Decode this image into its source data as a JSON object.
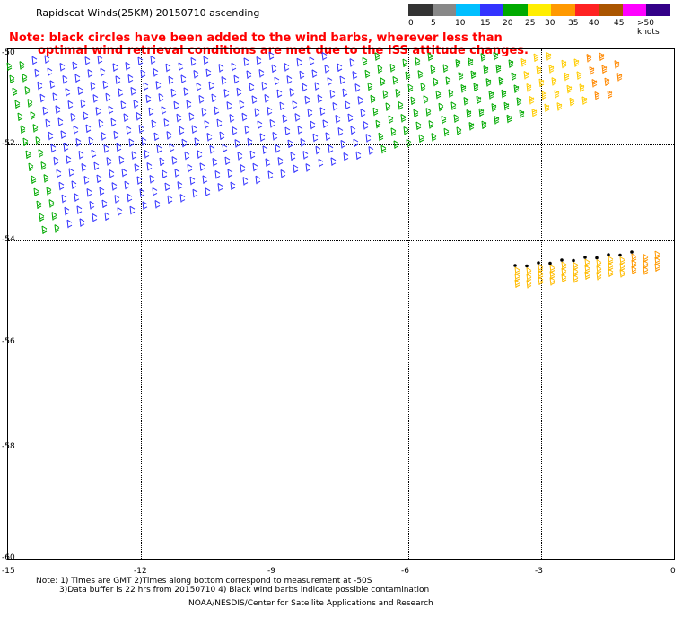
{
  "title": "Rapidscat Winds(25KM) 20150710 ascending",
  "note_line1": "Note: black circles have been added to the wind barbs, wherever less than",
  "note_line2": "optimal wind retrieval conditions are met due to the ISS attitude changes.",
  "legend": {
    "labels": [
      "0",
      "5",
      "10",
      "15",
      "20",
      "25",
      "30",
      "35",
      "40",
      "45",
      ">50 knots"
    ],
    "colors": [
      "#333333",
      "#888888",
      "#00bfff",
      "#3333ff",
      "#00aa00",
      "#ffee00",
      "#ff9900",
      "#ff2222",
      "#aa5500",
      "#ff00ff",
      "#330088"
    ]
  },
  "y_axis_labels": [
    "-50",
    "-52",
    "-54",
    "-56",
    "-58",
    "-60"
  ],
  "x_axis_labels": [
    "-15",
    "-12",
    "-9",
    "-6",
    "-3",
    "0"
  ],
  "footer": {
    "line1": "Note: 1) Times are GMT 2)Times along bottom correspond to measurement at -50S",
    "line2": "3)Data buffer is 22 hrs from 20150710 4) Black wind barbs indicate possible contamination",
    "line3": "NOAA/NESDIS/Center for Satellite Applications and Research"
  }
}
